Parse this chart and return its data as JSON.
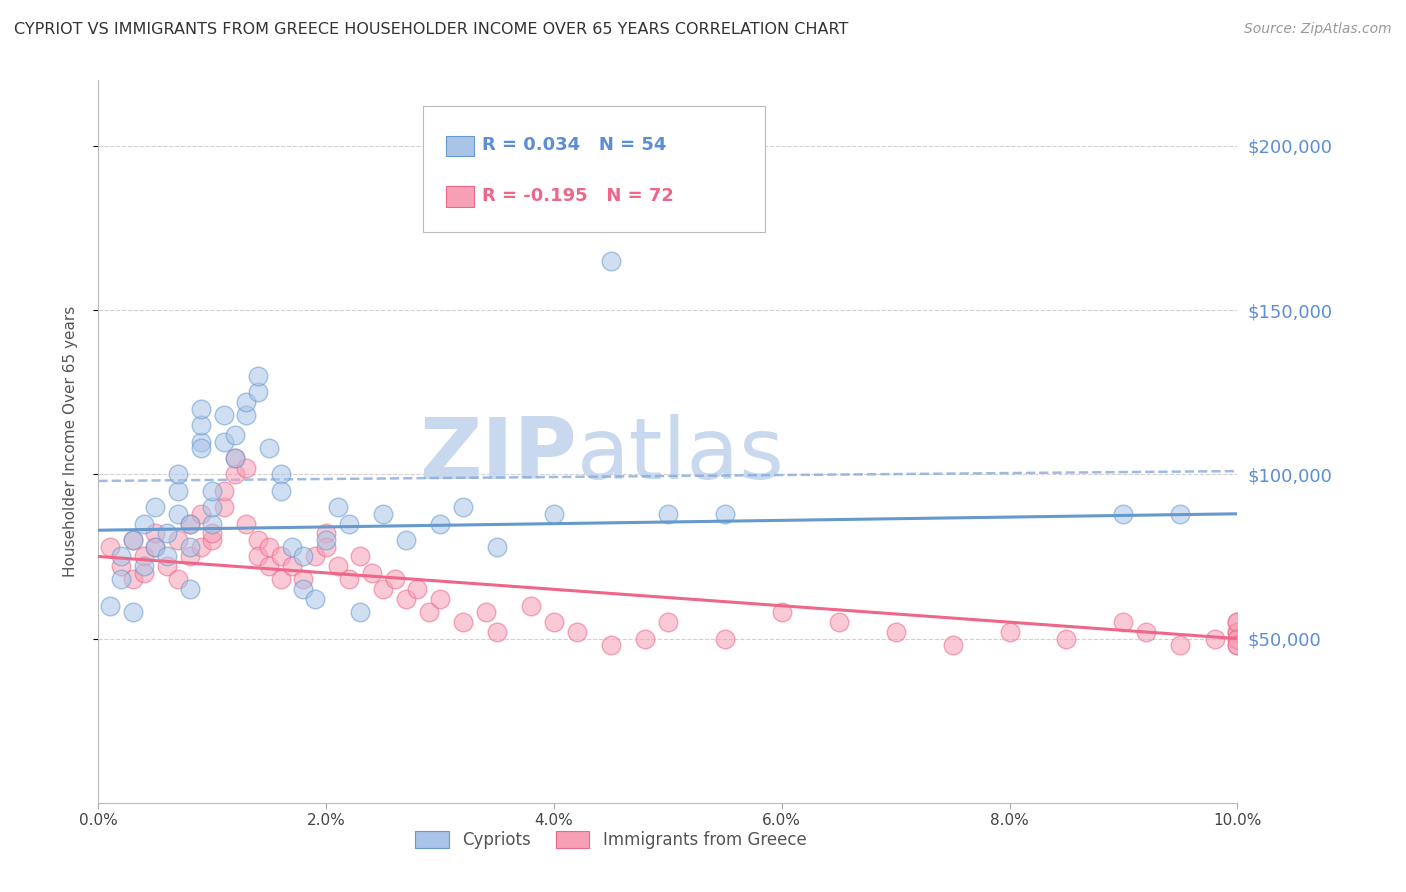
{
  "title": "CYPRIOT VS IMMIGRANTS FROM GREECE HOUSEHOLDER INCOME OVER 65 YEARS CORRELATION CHART",
  "source": "Source: ZipAtlas.com",
  "ylabel": "Householder Income Over 65 years",
  "xlim": [
    0.0,
    0.1
  ],
  "ylim": [
    0,
    220000
  ],
  "xticks": [
    0.0,
    0.02,
    0.04,
    0.06,
    0.08,
    0.1
  ],
  "xticklabels": [
    "0.0%",
    "2.0%",
    "4.0%",
    "6.0%",
    "8.0%",
    "10.0%"
  ],
  "ytick_labels_right": [
    "$50,000",
    "$100,000",
    "$150,000",
    "$200,000"
  ],
  "ytick_values_right": [
    50000,
    100000,
    150000,
    200000
  ],
  "grid_color": "#cccccc",
  "background_color": "#ffffff",
  "cypriot_color": "#6699cc",
  "cypriot_color_fill": "#aac4e8",
  "immigrant_color": "#ee6688",
  "immigrant_color_fill": "#f5a0b5",
  "cypriot_R": 0.034,
  "cypriot_N": 54,
  "immigrant_R": -0.195,
  "immigrant_N": 72,
  "dashed_line_color": "#88aadd",
  "watermark_zip": "ZIP",
  "watermark_atlas": "atlas",
  "watermark_color": "#c8d8ee",
  "cypriot_x": [
    0.001,
    0.002,
    0.002,
    0.003,
    0.003,
    0.004,
    0.004,
    0.005,
    0.005,
    0.006,
    0.006,
    0.007,
    0.007,
    0.007,
    0.008,
    0.008,
    0.008,
    0.009,
    0.009,
    0.009,
    0.009,
    0.01,
    0.01,
    0.01,
    0.011,
    0.011,
    0.012,
    0.012,
    0.013,
    0.013,
    0.014,
    0.014,
    0.015,
    0.016,
    0.016,
    0.017,
    0.018,
    0.018,
    0.019,
    0.02,
    0.021,
    0.022,
    0.023,
    0.025,
    0.027,
    0.03,
    0.032,
    0.035,
    0.04,
    0.045,
    0.05,
    0.055,
    0.09,
    0.095
  ],
  "cypriot_y": [
    60000,
    68000,
    75000,
    58000,
    80000,
    72000,
    85000,
    78000,
    90000,
    82000,
    75000,
    88000,
    95000,
    100000,
    65000,
    78000,
    85000,
    110000,
    115000,
    120000,
    108000,
    85000,
    90000,
    95000,
    110000,
    118000,
    112000,
    105000,
    118000,
    122000,
    125000,
    130000,
    108000,
    100000,
    95000,
    78000,
    75000,
    65000,
    62000,
    80000,
    90000,
    85000,
    58000,
    88000,
    80000,
    85000,
    90000,
    78000,
    88000,
    165000,
    88000,
    88000,
    88000,
    88000
  ],
  "immigrant_x": [
    0.001,
    0.002,
    0.003,
    0.003,
    0.004,
    0.004,
    0.005,
    0.005,
    0.006,
    0.007,
    0.007,
    0.008,
    0.008,
    0.009,
    0.009,
    0.01,
    0.01,
    0.011,
    0.011,
    0.012,
    0.012,
    0.013,
    0.013,
    0.014,
    0.014,
    0.015,
    0.015,
    0.016,
    0.016,
    0.017,
    0.018,
    0.019,
    0.02,
    0.02,
    0.021,
    0.022,
    0.023,
    0.024,
    0.025,
    0.026,
    0.027,
    0.028,
    0.029,
    0.03,
    0.032,
    0.034,
    0.035,
    0.038,
    0.04,
    0.042,
    0.045,
    0.048,
    0.05,
    0.055,
    0.06,
    0.065,
    0.07,
    0.075,
    0.08,
    0.085,
    0.09,
    0.092,
    0.095,
    0.098,
    0.1,
    0.1,
    0.1,
    0.1,
    0.1,
    0.1,
    0.1,
    0.1
  ],
  "immigrant_y": [
    78000,
    72000,
    68000,
    80000,
    75000,
    70000,
    78000,
    82000,
    72000,
    68000,
    80000,
    85000,
    75000,
    78000,
    88000,
    80000,
    82000,
    90000,
    95000,
    100000,
    105000,
    102000,
    85000,
    80000,
    75000,
    78000,
    72000,
    68000,
    75000,
    72000,
    68000,
    75000,
    82000,
    78000,
    72000,
    68000,
    75000,
    70000,
    65000,
    68000,
    62000,
    65000,
    58000,
    62000,
    55000,
    58000,
    52000,
    60000,
    55000,
    52000,
    48000,
    50000,
    55000,
    50000,
    58000,
    55000,
    52000,
    48000,
    52000,
    50000,
    55000,
    52000,
    48000,
    50000,
    52000,
    55000,
    48000,
    50000,
    52000,
    55000,
    50000,
    48000
  ],
  "blue_line_x": [
    0.0,
    0.1
  ],
  "blue_line_y": [
    83000,
    88000
  ],
  "pink_line_x": [
    0.0,
    0.1
  ],
  "pink_line_y": [
    75000,
    50000
  ],
  "dashed_line_x": [
    0.0,
    0.1
  ],
  "dashed_line_y": [
    98000,
    101000
  ]
}
